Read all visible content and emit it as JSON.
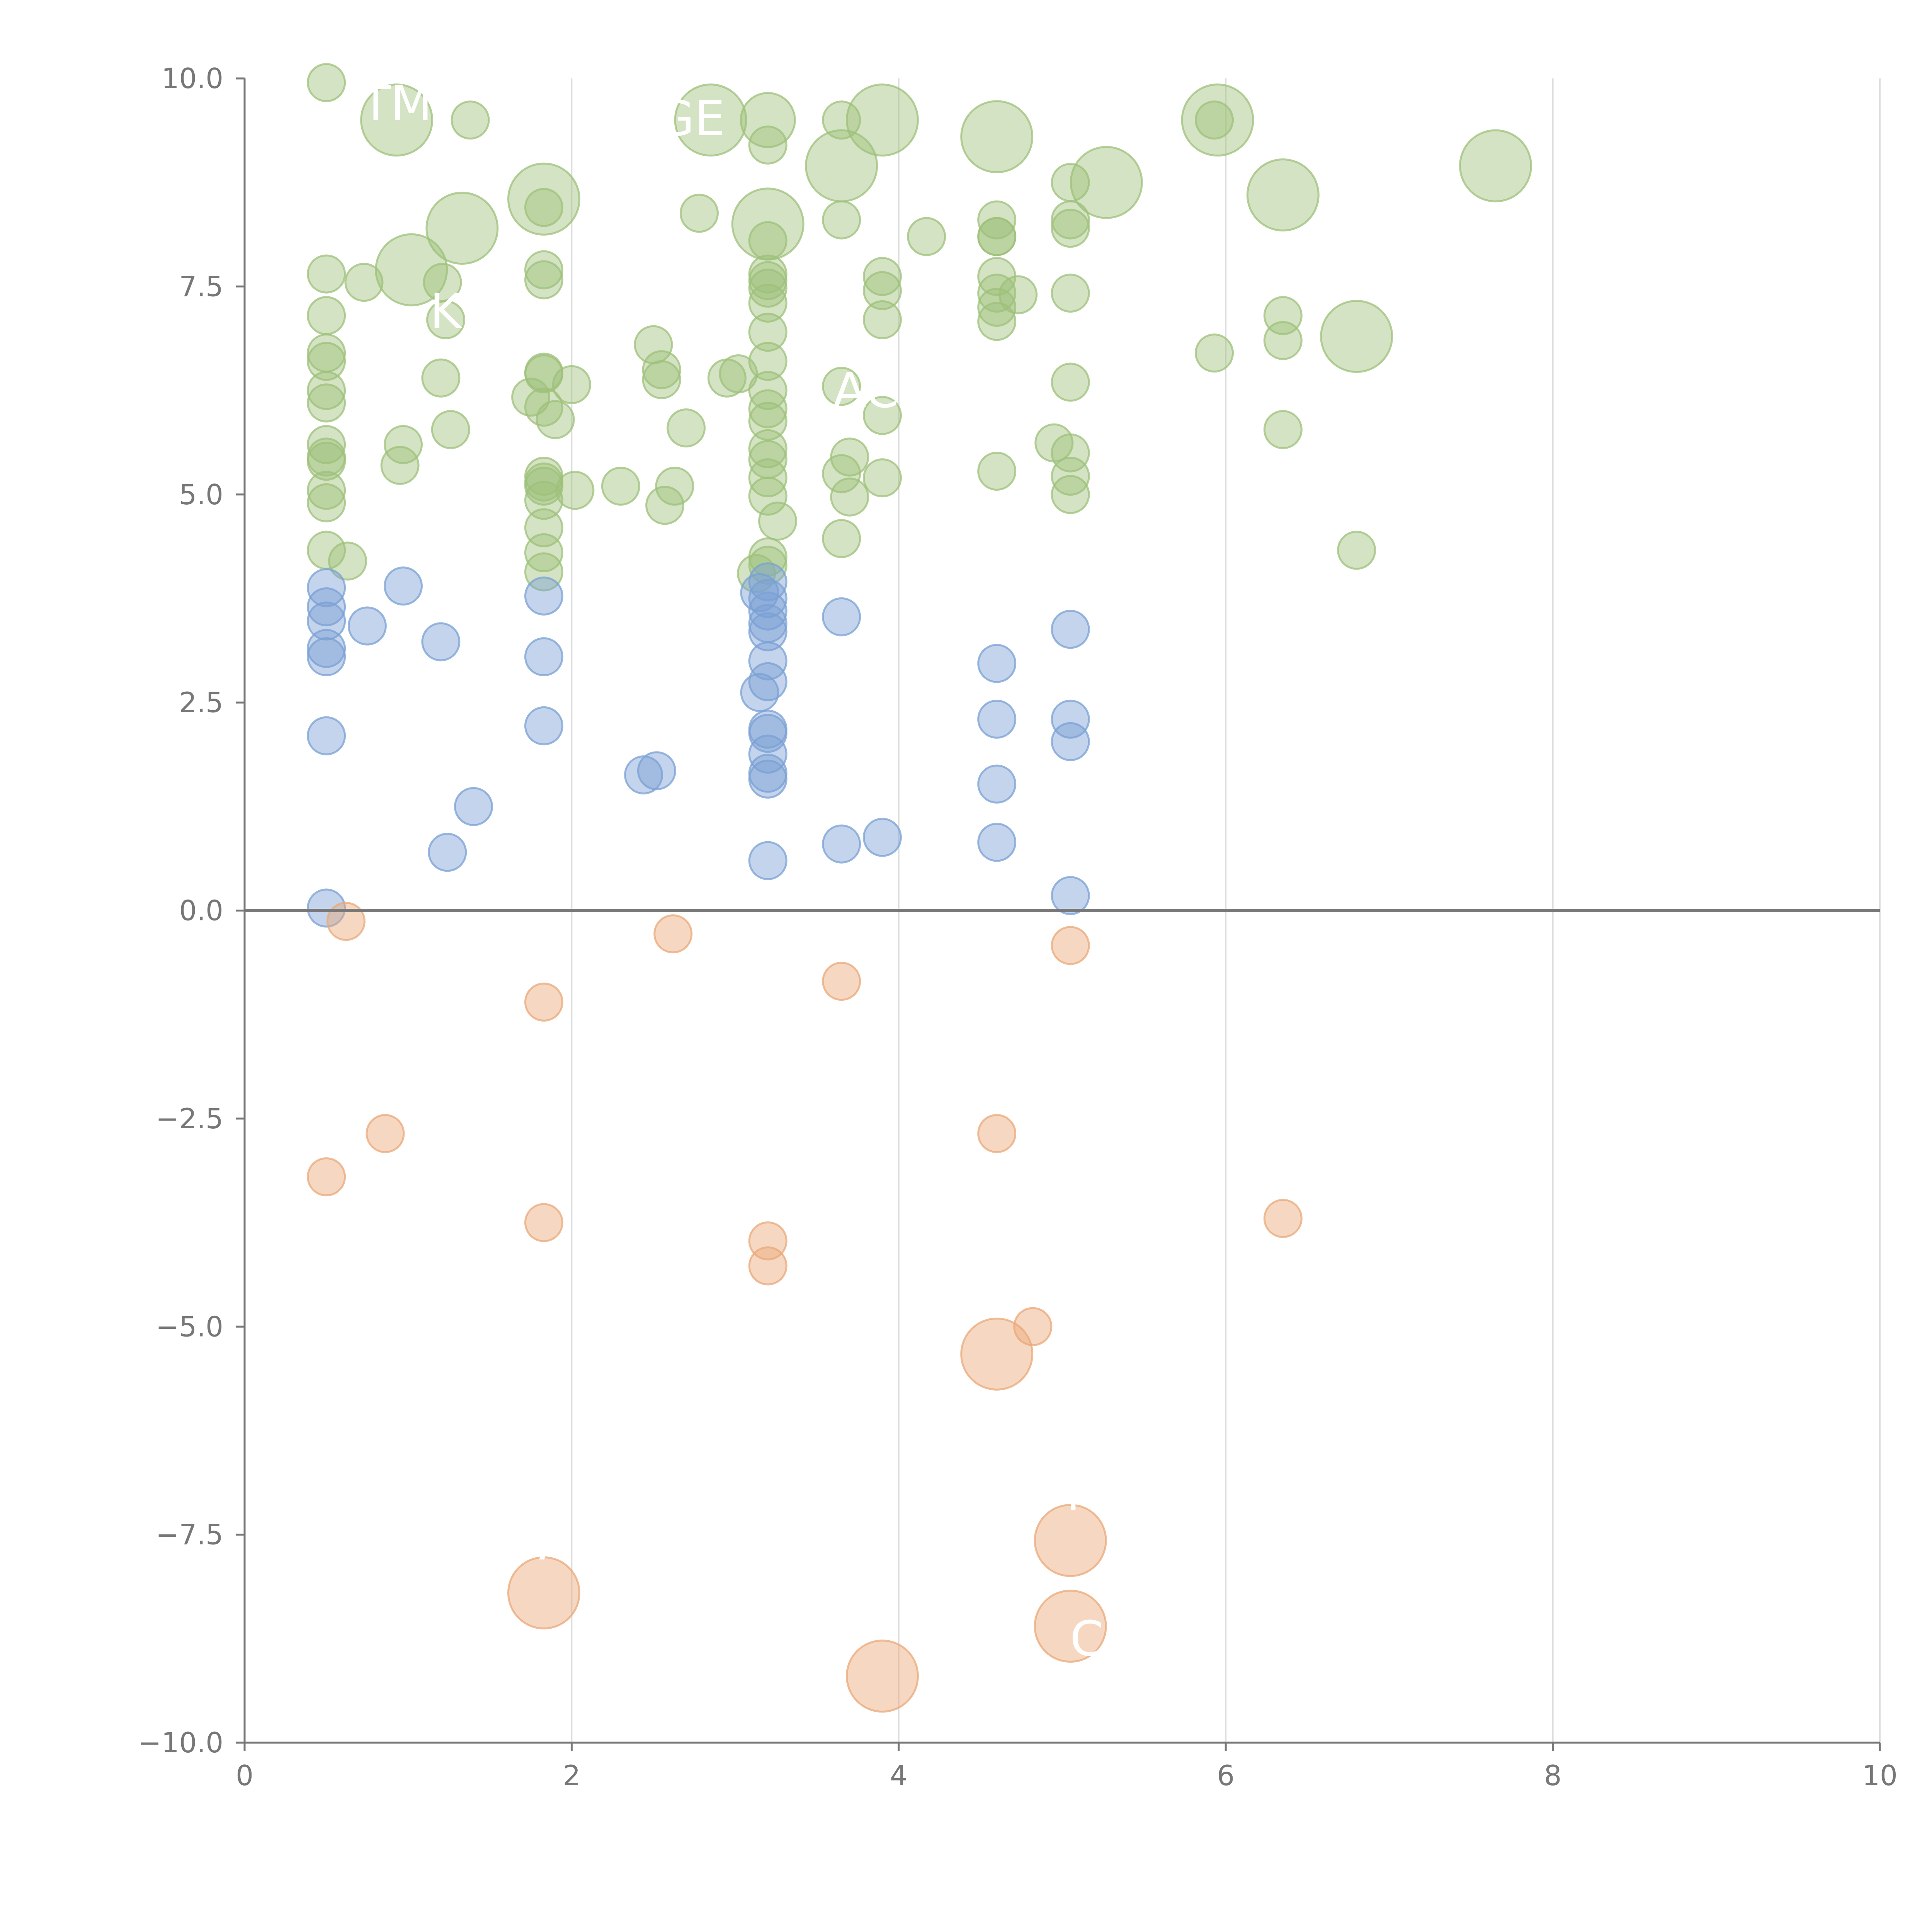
{
  "chart_data": {
    "type": "scatter",
    "title": "",
    "xlabel": "",
    "ylabel": "",
    "xlim": [
      0,
      10
    ],
    "ylim": [
      -10,
      10
    ],
    "x_ticks": [
      0,
      2,
      4,
      6,
      8,
      10
    ],
    "y_ticks": [
      10,
      7.5,
      5,
      2.5,
      0,
      -2.5,
      -5,
      -7.5,
      -10
    ],
    "x_tick_labels": [
      "0",
      "2",
      "4",
      "6",
      "8",
      "10"
    ],
    "y_tick_labels": [
      "10.0",
      "7.5",
      "5.0",
      "2.5",
      "0.0",
      "−2.5",
      "−5.0",
      "−7.5",
      "−10.0"
    ],
    "grid": "vertical lines at x ticks",
    "zero_line": true,
    "series": [
      {
        "color": "#9dc07a",
        "points": [
          [
            0.5,
            9.95,
            "s"
          ],
          [
            0.93,
            9.5,
            "l"
          ],
          [
            1.38,
            9.5,
            "s"
          ],
          [
            2.85,
            9.5,
            "l"
          ],
          [
            3.2,
            9.5,
            "m"
          ],
          [
            3.65,
            9.5,
            "s"
          ],
          [
            3.9,
            9.5,
            "l"
          ],
          [
            5.95,
            9.5,
            "l"
          ],
          [
            5.93,
            9.5,
            "s"
          ],
          [
            4.6,
            9.3,
            "l"
          ],
          [
            3.2,
            9.2,
            "s"
          ],
          [
            3.65,
            8.95,
            "l"
          ],
          [
            7.65,
            8.95,
            "l"
          ],
          [
            5.05,
            8.75,
            "s"
          ],
          [
            5.27,
            8.75,
            "l"
          ],
          [
            1.83,
            8.55,
            "l"
          ],
          [
            6.35,
            8.6,
            "l"
          ],
          [
            1.83,
            8.45,
            "s"
          ],
          [
            2.78,
            8.38,
            "s"
          ],
          [
            3.65,
            8.3,
            "s"
          ],
          [
            4.6,
            8.3,
            "s"
          ],
          [
            5.05,
            8.3,
            "s"
          ],
          [
            3.2,
            8.25,
            "l"
          ],
          [
            1.33,
            8.2,
            "l"
          ],
          [
            5.05,
            8.2,
            "s"
          ],
          [
            4.17,
            8.1,
            "s"
          ],
          [
            4.6,
            8.1,
            "s"
          ],
          [
            4.6,
            8.1,
            "s"
          ],
          [
            3.2,
            8.05,
            "s"
          ],
          [
            1.02,
            7.7,
            "l"
          ],
          [
            1.83,
            7.7,
            "s"
          ],
          [
            0.5,
            7.65,
            "s"
          ],
          [
            3.2,
            7.65,
            "s"
          ],
          [
            3.9,
            7.62,
            "s"
          ],
          [
            4.6,
            7.62,
            "s"
          ],
          [
            1.83,
            7.58,
            "s"
          ],
          [
            3.2,
            7.57,
            "s"
          ],
          [
            1.21,
            7.55,
            "s"
          ],
          [
            0.73,
            7.55,
            "s"
          ],
          [
            3.2,
            7.48,
            "s"
          ],
          [
            3.9,
            7.45,
            "s"
          ],
          [
            4.6,
            7.42,
            "s"
          ],
          [
            4.73,
            7.4,
            "s"
          ],
          [
            5.05,
            7.42,
            "s"
          ],
          [
            3.2,
            7.3,
            "s"
          ],
          [
            4.6,
            7.25,
            "s"
          ],
          [
            0.5,
            7.15,
            "s"
          ],
          [
            6.35,
            7.15,
            "s"
          ],
          [
            3.9,
            7.1,
            "s"
          ],
          [
            1.23,
            7.1,
            "s"
          ],
          [
            4.6,
            7.08,
            "s"
          ],
          [
            3.2,
            6.95,
            "s"
          ],
          [
            6.8,
            6.9,
            "l"
          ],
          [
            6.35,
            6.85,
            "s"
          ],
          [
            2.5,
            6.8,
            "s"
          ],
          [
            0.5,
            6.7,
            "s"
          ],
          [
            5.93,
            6.7,
            "s"
          ],
          [
            0.5,
            6.6,
            "s"
          ],
          [
            3.2,
            6.6,
            "s"
          ],
          [
            2.55,
            6.5,
            "s"
          ],
          [
            1.83,
            6.47,
            "s"
          ],
          [
            1.83,
            6.45,
            "s"
          ],
          [
            3.02,
            6.45,
            "s"
          ],
          [
            2.95,
            6.4,
            "s"
          ],
          [
            1.2,
            6.4,
            "s"
          ],
          [
            2.55,
            6.38,
            "s"
          ],
          [
            2.0,
            6.32,
            "s"
          ],
          [
            3.65,
            6.3,
            "s"
          ],
          [
            5.05,
            6.35,
            "s"
          ],
          [
            0.5,
            6.25,
            "s"
          ],
          [
            3.2,
            6.25,
            "s"
          ],
          [
            1.75,
            6.17,
            "s"
          ],
          [
            0.5,
            6.1,
            "s"
          ],
          [
            1.83,
            6.05,
            "s"
          ],
          [
            3.2,
            6.03,
            "s"
          ],
          [
            3.9,
            5.95,
            "s"
          ],
          [
            1.9,
            5.9,
            "s"
          ],
          [
            3.2,
            5.88,
            "s"
          ],
          [
            2.7,
            5.8,
            "s"
          ],
          [
            1.26,
            5.78,
            "s"
          ],
          [
            6.35,
            5.78,
            "s"
          ],
          [
            4.95,
            5.62,
            "s"
          ],
          [
            0.5,
            5.6,
            "s"
          ],
          [
            0.97,
            5.6,
            "s"
          ],
          [
            3.2,
            5.55,
            "s"
          ],
          [
            3.7,
            5.45,
            "s"
          ],
          [
            5.05,
            5.5,
            "s"
          ],
          [
            0.5,
            5.45,
            "s"
          ],
          [
            0.5,
            5.4,
            "s"
          ],
          [
            3.2,
            5.42,
            "s"
          ],
          [
            0.95,
            5.35,
            "s"
          ],
          [
            4.6,
            5.28,
            "s"
          ],
          [
            3.65,
            5.25,
            "s"
          ],
          [
            1.83,
            5.22,
            "s"
          ],
          [
            5.05,
            5.22,
            "s"
          ],
          [
            3.2,
            5.2,
            "s"
          ],
          [
            3.9,
            5.2,
            "s"
          ],
          [
            1.83,
            5.15,
            "s"
          ],
          [
            2.3,
            5.1,
            "s"
          ],
          [
            2.63,
            5.1,
            "s"
          ],
          [
            1.83,
            5.1,
            "s"
          ],
          [
            2.02,
            5.05,
            "s"
          ],
          [
            0.5,
            5.05,
            "s"
          ],
          [
            5.05,
            5.0,
            "s"
          ],
          [
            3.2,
            4.98,
            "s"
          ],
          [
            3.7,
            4.97,
            "s"
          ],
          [
            1.83,
            4.93,
            "s"
          ],
          [
            0.5,
            4.9,
            "s"
          ],
          [
            2.57,
            4.87,
            "s"
          ],
          [
            3.26,
            4.68,
            "s"
          ],
          [
            1.83,
            4.6,
            "s"
          ],
          [
            3.65,
            4.47,
            "s"
          ],
          [
            0.5,
            4.33,
            "s"
          ],
          [
            6.8,
            4.33,
            "s"
          ],
          [
            1.83,
            4.3,
            "s"
          ],
          [
            3.2,
            4.25,
            "s"
          ],
          [
            0.63,
            4.2,
            "s"
          ],
          [
            3.2,
            4.15,
            "s"
          ],
          [
            3.13,
            4.05,
            "s"
          ],
          [
            1.83,
            4.07,
            "s"
          ]
        ]
      },
      {
        "color": "#7aa0d4",
        "points": [
          [
            3.2,
            3.95,
            "s"
          ],
          [
            0.5,
            3.88,
            "s"
          ],
          [
            0.97,
            3.9,
            "s"
          ],
          [
            3.15,
            3.82,
            "s"
          ],
          [
            1.83,
            3.78,
            "s"
          ],
          [
            3.2,
            3.75,
            "s"
          ],
          [
            0.5,
            3.65,
            "s"
          ],
          [
            3.2,
            3.6,
            "s"
          ],
          [
            3.65,
            3.53,
            "s"
          ],
          [
            0.5,
            3.48,
            "s"
          ],
          [
            3.2,
            3.45,
            "s"
          ],
          [
            0.75,
            3.42,
            "s"
          ],
          [
            5.05,
            3.38,
            "s"
          ],
          [
            3.2,
            3.35,
            "s"
          ],
          [
            1.2,
            3.23,
            "s"
          ],
          [
            0.5,
            3.15,
            "s"
          ],
          [
            0.5,
            3.05,
            "s"
          ],
          [
            1.83,
            3.05,
            "s"
          ],
          [
            3.2,
            3.0,
            "s"
          ],
          [
            4.6,
            2.97,
            "s"
          ],
          [
            3.2,
            2.75,
            "s"
          ],
          [
            3.15,
            2.62,
            "s"
          ],
          [
            4.6,
            2.3,
            "s"
          ],
          [
            5.05,
            2.3,
            "s"
          ],
          [
            1.83,
            2.22,
            "s"
          ],
          [
            3.2,
            2.18,
            "s"
          ],
          [
            3.2,
            2.13,
            "s"
          ],
          [
            0.5,
            2.1,
            "s"
          ],
          [
            5.05,
            2.03,
            "s"
          ],
          [
            3.2,
            1.88,
            "s"
          ],
          [
            2.52,
            1.68,
            "s"
          ],
          [
            2.44,
            1.63,
            "s"
          ],
          [
            3.2,
            1.65,
            "s"
          ],
          [
            3.2,
            1.58,
            "s"
          ],
          [
            4.6,
            1.52,
            "s"
          ],
          [
            1.4,
            1.25,
            "s"
          ],
          [
            3.9,
            0.88,
            "s"
          ],
          [
            4.6,
            0.82,
            "s"
          ],
          [
            3.65,
            0.8,
            "s"
          ],
          [
            1.24,
            0.7,
            "s"
          ],
          [
            3.2,
            0.6,
            "s"
          ],
          [
            5.05,
            0.18,
            "s"
          ],
          [
            0.5,
            0.03,
            "s"
          ]
        ]
      },
      {
        "color": "#eaa878",
        "points": [
          [
            0.62,
            -0.13,
            "s"
          ],
          [
            2.62,
            -0.28,
            "s"
          ],
          [
            5.05,
            -0.42,
            "s"
          ],
          [
            3.65,
            -0.85,
            "s"
          ],
          [
            1.83,
            -1.1,
            "s"
          ],
          [
            0.86,
            -2.68,
            "s"
          ],
          [
            4.6,
            -2.68,
            "s"
          ],
          [
            0.5,
            -3.2,
            "s"
          ],
          [
            6.35,
            -3.7,
            "s"
          ],
          [
            1.83,
            -3.75,
            "s"
          ],
          [
            3.2,
            -3.97,
            "s"
          ],
          [
            3.2,
            -4.27,
            "s"
          ],
          [
            4.82,
            -5.0,
            "s"
          ],
          [
            4.6,
            -5.33,
            "l"
          ],
          [
            5.05,
            -7.57,
            "l"
          ],
          [
            1.83,
            -8.2,
            "l"
          ],
          [
            5.05,
            -8.6,
            "l"
          ],
          [
            3.9,
            -9.2,
            "l"
          ]
        ]
      }
    ],
    "point_labels": [
      {
        "text": "TM",
        "x": 0.93,
        "y": 9.5
      },
      {
        "text": "GE",
        "x": 2.73,
        "y": 9.32
      },
      {
        "text": "K",
        "x": 1.23,
        "y": 7.0
      },
      {
        "text": "AC",
        "x": 3.8,
        "y": 6.05
      },
      {
        "text": "A",
        "x": 1.9,
        "y": -7.8
      },
      {
        "text": "K",
        "x": 5.12,
        "y": -7.2
      },
      {
        "text": "C",
        "x": 5.15,
        "y": -8.95
      }
    ]
  }
}
